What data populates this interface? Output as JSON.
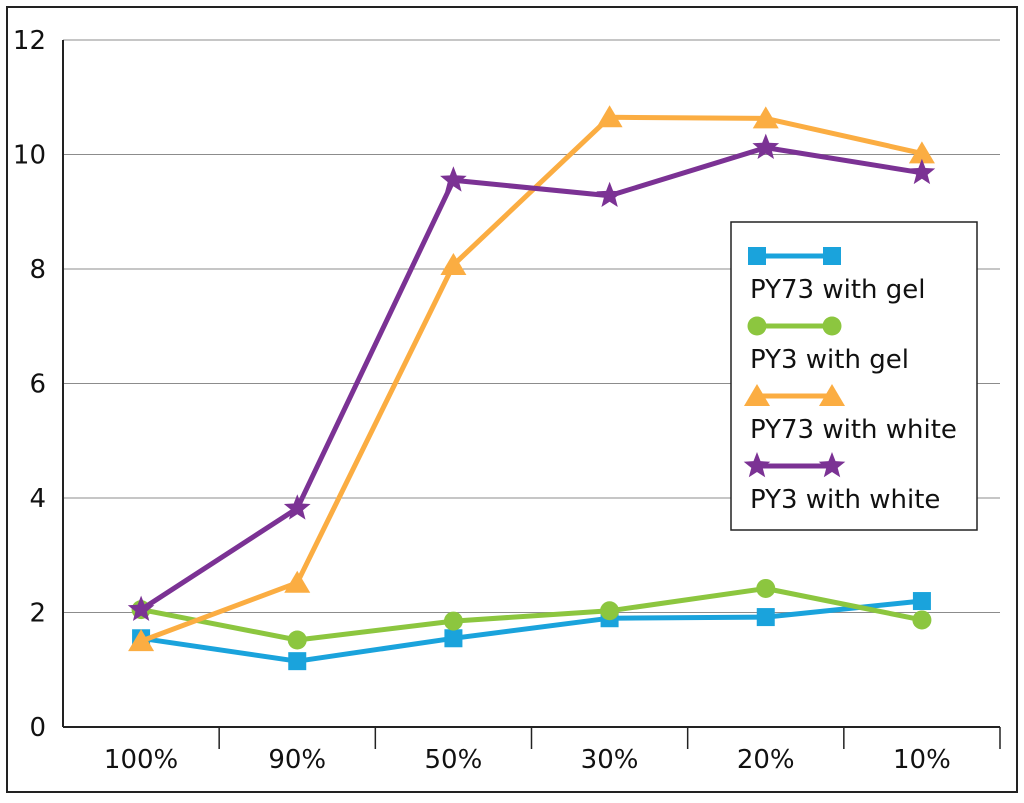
{
  "chart_data": {
    "type": "line",
    "title": "",
    "xlabel": "",
    "ylabel": "",
    "categories": [
      "100%",
      "90%",
      "50%",
      "30%",
      "20%",
      "10%"
    ],
    "ylim": [
      0,
      12
    ],
    "yticks": [
      "0",
      "2",
      "4",
      "6",
      "8",
      "10",
      "12"
    ],
    "grid": "horizontal",
    "legend_position": "right",
    "series": [
      {
        "name": "PY73 with gel",
        "color": "#1aa3dc",
        "marker": "square",
        "values": [
          1.55,
          1.15,
          1.55,
          1.9,
          1.92,
          2.2
        ]
      },
      {
        "name": "PY3 with gel",
        "color": "#8cc63f",
        "marker": "circle",
        "values": [
          2.05,
          1.52,
          1.85,
          2.03,
          2.42,
          1.87
        ]
      },
      {
        "name": "PY73 with white",
        "color": "#fbad42",
        "marker": "triangle",
        "values": [
          1.5,
          2.52,
          8.07,
          10.65,
          10.63,
          10.02
        ]
      },
      {
        "name": "PY3 with white",
        "color": "#7b3294",
        "marker": "star",
        "values": [
          2.05,
          3.82,
          9.55,
          9.28,
          10.12,
          9.68
        ]
      }
    ]
  }
}
